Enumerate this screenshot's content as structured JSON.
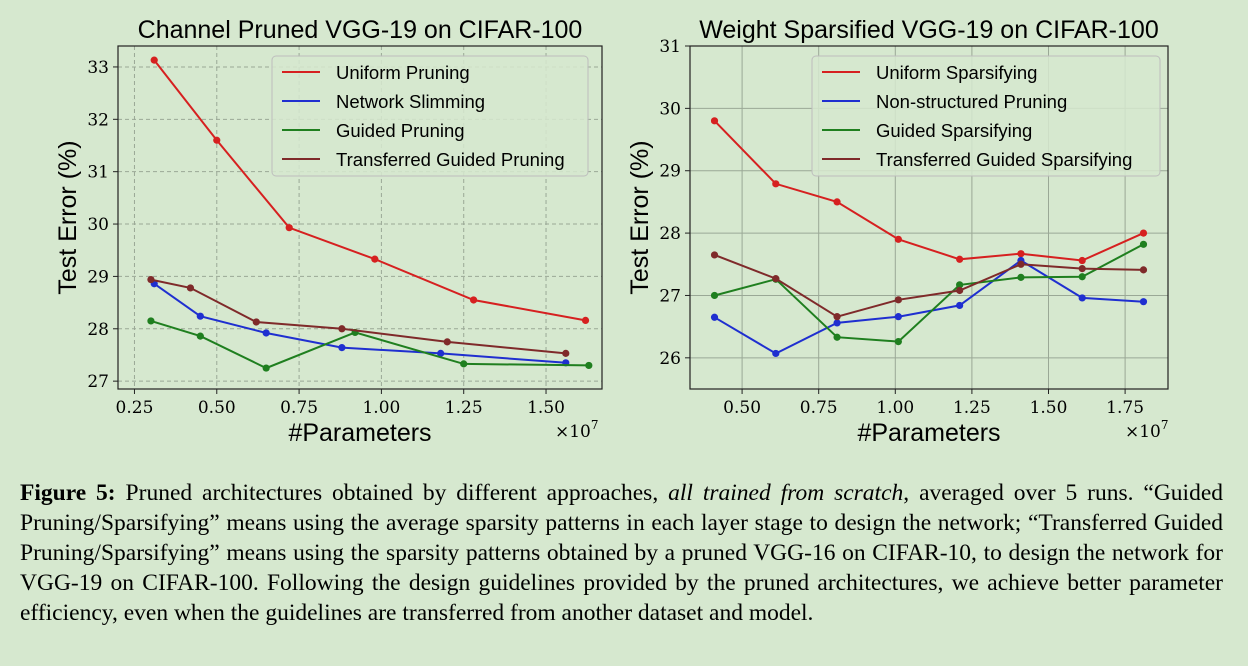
{
  "chart_data": [
    {
      "type": "line",
      "title": "Channel Pruned VGG-19 on CIFAR-100",
      "xlabel": "#Parameters",
      "ylabel": "Test Error (%)",
      "x_multiplier": "×10",
      "x_exponent": "7",
      "xlim": [
        0.2,
        1.67
      ],
      "ylim": [
        26.85,
        33.4
      ],
      "xticks": [
        0.25,
        0.5,
        0.75,
        1.0,
        1.25,
        1.5
      ],
      "xtick_labels": [
        "0.25",
        "0.50",
        "0.75",
        "1.00",
        "1.25",
        "1.50"
      ],
      "yticks": [
        27,
        28,
        29,
        30,
        31,
        32,
        33
      ],
      "ytick_labels": [
        "27",
        "28",
        "29",
        "30",
        "31",
        "32",
        "33"
      ],
      "grid": true,
      "legend_position": "top-right",
      "series": [
        {
          "name": "Uniform Pruning",
          "color": "#d62020",
          "x": [
            0.31,
            0.5,
            0.72,
            0.98,
            1.28,
            1.62
          ],
          "y": [
            33.13,
            31.6,
            29.93,
            29.33,
            28.55,
            28.16
          ]
        },
        {
          "name": "Network Slimming",
          "color": "#1f2fd0",
          "x": [
            0.31,
            0.45,
            0.65,
            0.88,
            1.18,
            1.56
          ],
          "y": [
            28.86,
            28.24,
            27.92,
            27.64,
            27.53,
            27.35
          ]
        },
        {
          "name": "Guided Pruning",
          "color": "#1f7f1f",
          "x": [
            0.3,
            0.45,
            0.65,
            0.92,
            1.25,
            1.63
          ],
          "y": [
            28.15,
            27.86,
            27.25,
            27.93,
            27.33,
            27.3
          ]
        },
        {
          "name": "Transferred Guided Pruning",
          "color": "#7f2a2a",
          "x": [
            0.3,
            0.42,
            0.62,
            0.88,
            1.2,
            1.56
          ],
          "y": [
            28.94,
            28.78,
            28.13,
            28.0,
            27.75,
            27.53
          ]
        }
      ]
    },
    {
      "type": "line",
      "title": "Weight Sparsified VGG-19 on CIFAR-100",
      "xlabel": "#Parameters",
      "ylabel": "Test Error (%)",
      "x_multiplier": "×10",
      "x_exponent": "7",
      "xlim": [
        0.33,
        1.89
      ],
      "ylim": [
        25.5,
        31.0
      ],
      "xticks": [
        0.5,
        0.75,
        1.0,
        1.25,
        1.5,
        1.75
      ],
      "xtick_labels": [
        "0.50",
        "0.75",
        "1.00",
        "1.25",
        "1.50",
        "1.75"
      ],
      "yticks": [
        26,
        27,
        28,
        29,
        30,
        31
      ],
      "ytick_labels": [
        "26",
        "27",
        "28",
        "29",
        "30",
        "31"
      ],
      "grid": true,
      "legend_position": "top-right",
      "series": [
        {
          "name": "Uniform Sparsifying",
          "color": "#d62020",
          "x": [
            0.41,
            0.61,
            0.81,
            1.01,
            1.21,
            1.41,
            1.61,
            1.81
          ],
          "y": [
            29.8,
            28.79,
            28.5,
            27.9,
            27.58,
            27.67,
            27.56,
            28.0
          ]
        },
        {
          "name": "Non-structured Pruning",
          "color": "#1f2fd0",
          "x": [
            0.41,
            0.61,
            0.81,
            1.01,
            1.21,
            1.41,
            1.61,
            1.81
          ],
          "y": [
            26.65,
            26.07,
            26.56,
            26.66,
            26.84,
            27.56,
            26.96,
            26.9
          ]
        },
        {
          "name": "Guided Sparsifying",
          "color": "#1f7f1f",
          "x": [
            0.41,
            0.61,
            0.81,
            1.01,
            1.21,
            1.41,
            1.61,
            1.81
          ],
          "y": [
            27.0,
            27.26,
            26.33,
            26.26,
            27.17,
            27.29,
            27.3,
            27.82
          ]
        },
        {
          "name": "Transferred Guided Sparsifying",
          "color": "#7f2a2a",
          "x": [
            0.41,
            0.61,
            0.81,
            1.01,
            1.21,
            1.41,
            1.61,
            1.81
          ],
          "y": [
            27.65,
            27.27,
            26.66,
            26.93,
            27.08,
            27.5,
            27.43,
            27.41
          ]
        }
      ]
    }
  ],
  "caption": {
    "label": "Figure 5:",
    "part1": " Pruned architectures obtained by different approaches, ",
    "emphasis": "all trained from scratch",
    "part2": ", averaged over 5 runs. “Guided Pruning/Sparsifying” means using the average sparsity patterns in each layer stage to design the network; “Transferred Guided Pruning/Sparsifying” means using the sparsity patterns obtained by a pruned VGG-16 on CIFAR-10, to design the network for VGG-19 on CIFAR-100. Following the design guidelines provided by the pruned architectures, we achieve better parameter efficiency, even when the guidelines are transferred from another dataset and model."
  }
}
